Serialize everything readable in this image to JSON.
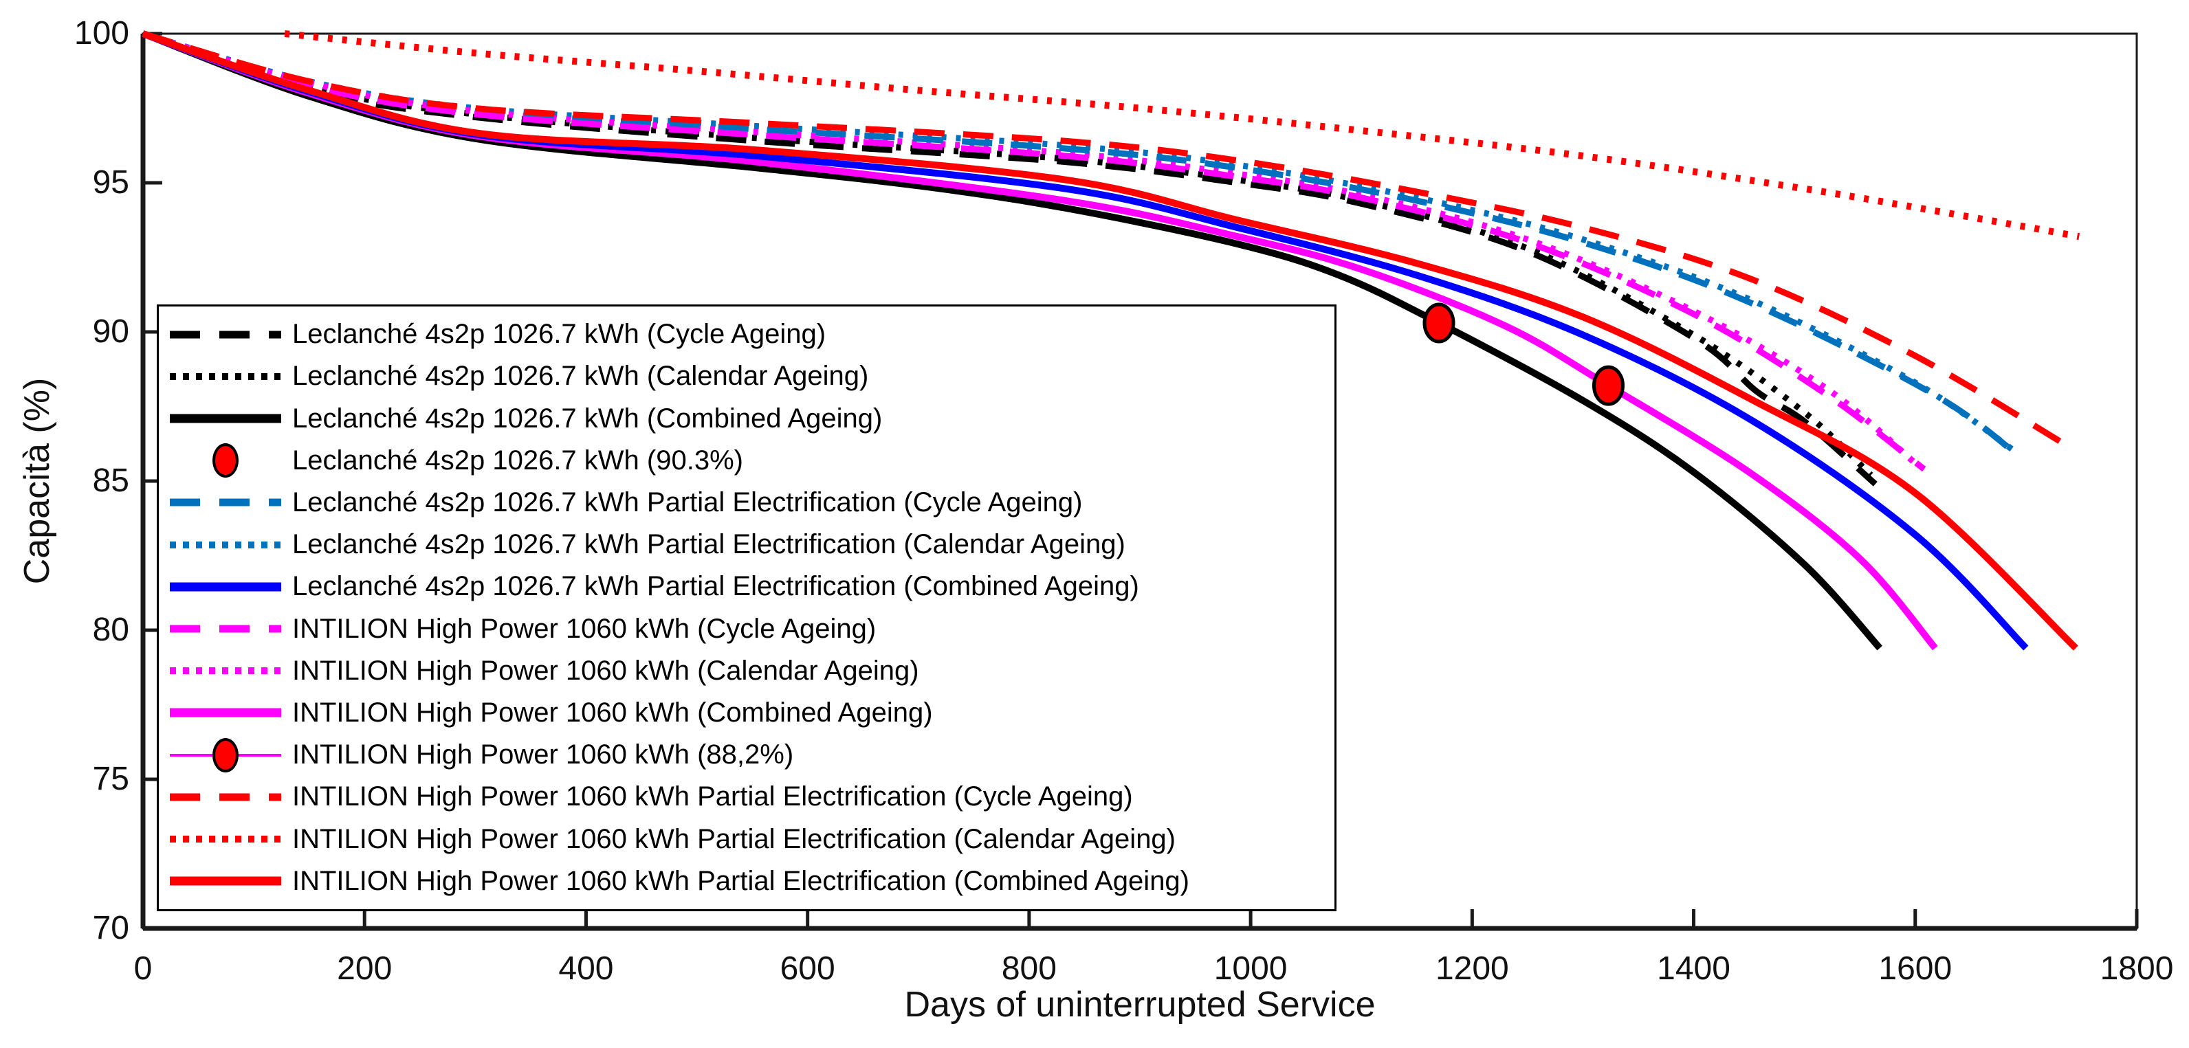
{
  "chart_data": {
    "type": "line",
    "title": "",
    "xlabel": "Days of uninterrupted Service",
    "ylabel": "Capacità (%)",
    "xlim": [
      0,
      1800
    ],
    "ylim": [
      70,
      100
    ],
    "x_ticks": [
      0,
      200,
      400,
      600,
      800,
      1000,
      1200,
      1400,
      1600,
      1800
    ],
    "y_ticks": [
      70,
      75,
      80,
      85,
      90,
      95,
      100
    ],
    "grid": false,
    "legend_position": "inside-left",
    "colors": {
      "black": "#000000",
      "leclanche_pe_dash": "#0072bd",
      "leclanche_pe_solid": "#0000ff",
      "intilion": "#ff00ff",
      "intilion_pe": "#ff0000",
      "marker_face": "#ff0000",
      "marker_edge": "#000000"
    },
    "series": [
      {
        "name": "Leclanché 4s2p 1026.7 kWh (Calendar Ageing)",
        "style": "dotted",
        "color": "#000000",
        "width": 9,
        "points": [
          [
            0,
            100
          ],
          [
            150,
            98.2
          ],
          [
            300,
            97.3
          ],
          [
            554,
            96.5
          ],
          [
            833,
            95.8
          ],
          [
            988,
            95.1
          ],
          [
            1100,
            94.4
          ],
          [
            1250,
            92.8
          ],
          [
            1400,
            89.9
          ],
          [
            1500,
            87.3
          ],
          [
            1560,
            85.2
          ]
        ]
      },
      {
        "name": "Leclanché 4s2p 1026.7 kWh Partial Electrification (Calendar Ageing)",
        "style": "dotted",
        "color": "#0072bd",
        "width": 9,
        "points": [
          [
            0,
            100
          ],
          [
            150,
            98.4
          ],
          [
            300,
            97.5
          ],
          [
            554,
            96.9
          ],
          [
            833,
            96.25
          ],
          [
            988,
            95.6
          ],
          [
            1150,
            94.5
          ],
          [
            1300,
            93.1
          ],
          [
            1450,
            91.1
          ],
          [
            1600,
            88.3
          ],
          [
            1690,
            86.0
          ]
        ]
      },
      {
        "name": "INTILION High Power 1060 kWh (Calendar Ageing)",
        "style": "dotted",
        "color": "#ff00ff",
        "width": 9,
        "points": [
          [
            0,
            100
          ],
          [
            150,
            98.35
          ],
          [
            300,
            97.4
          ],
          [
            554,
            96.7
          ],
          [
            833,
            96.0
          ],
          [
            988,
            95.3
          ],
          [
            1100,
            94.6
          ],
          [
            1250,
            93.1
          ],
          [
            1400,
            90.7
          ],
          [
            1520,
            88.1
          ],
          [
            1600,
            85.6
          ]
        ]
      },
      {
        "name": "Leclanché 4s2p 1026.7 kWh (Cycle Ageing)",
        "style": "dashed",
        "color": "#000000",
        "width": 9,
        "points": [
          [
            0,
            100
          ],
          [
            150,
            98.1
          ],
          [
            300,
            97.2
          ],
          [
            554,
            96.4
          ],
          [
            833,
            95.7
          ],
          [
            988,
            95.0
          ],
          [
            1100,
            94.3
          ],
          [
            1250,
            92.7
          ],
          [
            1400,
            89.8
          ],
          [
            1457,
            88.0
          ],
          [
            1500,
            87.0
          ],
          [
            1564,
            84.9
          ]
        ]
      },
      {
        "name": "Leclanché 4s2p 1026.7 kWh Partial Electrification (Cycle Ageing)",
        "style": "dashed",
        "color": "#0072bd",
        "width": 9,
        "points": [
          [
            0,
            100
          ],
          [
            150,
            98.3
          ],
          [
            300,
            97.4
          ],
          [
            554,
            96.8
          ],
          [
            833,
            96.15
          ],
          [
            988,
            95.5
          ],
          [
            1150,
            94.4
          ],
          [
            1300,
            93.0
          ],
          [
            1450,
            91.0
          ],
          [
            1617,
            87.9
          ],
          [
            1695,
            85.8
          ]
        ]
      },
      {
        "name": "INTILION High Power 1060 kWh (Cycle Ageing)",
        "style": "dashed",
        "color": "#ff00ff",
        "width": 9,
        "points": [
          [
            0,
            100
          ],
          [
            150,
            98.25
          ],
          [
            300,
            97.3
          ],
          [
            554,
            96.6
          ],
          [
            833,
            95.9
          ],
          [
            988,
            95.2
          ],
          [
            1100,
            94.5
          ],
          [
            1250,
            93.0
          ],
          [
            1400,
            90.6
          ],
          [
            1520,
            87.9
          ],
          [
            1608,
            85.4
          ]
        ]
      },
      {
        "name": "INTILION High Power 1060 kWh Partial Electrification (Calendar Ageing)",
        "style": "dotted",
        "color": "#ff0000",
        "width": 10,
        "points": [
          [
            128,
            100
          ],
          [
            300,
            99.35
          ],
          [
            500,
            98.75
          ],
          [
            700,
            98.1
          ],
          [
            900,
            97.5
          ],
          [
            1100,
            96.75
          ],
          [
            1300,
            95.9
          ],
          [
            1500,
            94.8
          ],
          [
            1650,
            93.85
          ],
          [
            1748,
            93.2
          ]
        ]
      },
      {
        "name": "INTILION High Power 1060 kWh Partial Electrification (Cycle Ageing)",
        "style": "dashed",
        "color": "#ff0000",
        "width": 9,
        "points": [
          [
            0,
            100
          ],
          [
            150,
            98.4
          ],
          [
            300,
            97.5
          ],
          [
            554,
            97.0
          ],
          [
            833,
            96.4
          ],
          [
            988,
            95.75
          ],
          [
            1150,
            94.7
          ],
          [
            1300,
            93.5
          ],
          [
            1450,
            91.8
          ],
          [
            1600,
            89.2
          ],
          [
            1741,
            86.1
          ]
        ]
      },
      {
        "name": "Leclanché 4s2p 1026.7 kWh (Combined Ageing)",
        "style": "solid",
        "color": "#000000",
        "width": 10,
        "points": [
          [
            0,
            100
          ],
          [
            150,
            97.9
          ],
          [
            305,
            96.45
          ],
          [
            554,
            95.5
          ],
          [
            700,
            94.9
          ],
          [
            833,
            94.15
          ],
          [
            988,
            92.95
          ],
          [
            1080,
            91.9
          ],
          [
            1170,
            90.3
          ],
          [
            1300,
            87.7
          ],
          [
            1400,
            85.3
          ],
          [
            1500,
            82.2
          ],
          [
            1568,
            79.4
          ]
        ]
      },
      {
        "name": "INTILION High Power 1060 kWh (Combined Ageing)",
        "style": "solid",
        "color": "#ff00ff",
        "width": 10,
        "points": [
          [
            0,
            100
          ],
          [
            150,
            98.0
          ],
          [
            305,
            96.55
          ],
          [
            554,
            95.7
          ],
          [
            833,
            94.4
          ],
          [
            988,
            93.2
          ],
          [
            1100,
            92.1
          ],
          [
            1230,
            90.2
          ],
          [
            1323,
            88.2
          ],
          [
            1450,
            85.3
          ],
          [
            1550,
            82.4
          ],
          [
            1618,
            79.4
          ]
        ]
      },
      {
        "name": "Leclanché 4s2p 1026.7 kWh Partial Electrification (Combined Ageing)",
        "style": "solid",
        "color": "#0000ff",
        "width": 10,
        "points": [
          [
            0,
            100
          ],
          [
            150,
            98.05
          ],
          [
            305,
            96.6
          ],
          [
            554,
            95.9
          ],
          [
            833,
            94.8
          ],
          [
            988,
            93.5
          ],
          [
            1150,
            91.9
          ],
          [
            1300,
            89.9
          ],
          [
            1454,
            87.0
          ],
          [
            1600,
            83.2
          ],
          [
            1700,
            79.4
          ]
        ]
      },
      {
        "name": "INTILION High Power 1060 kWh Partial Electrification (Combined Ageing)",
        "style": "solid",
        "color": "#ff0000",
        "width": 10,
        "points": [
          [
            0,
            100
          ],
          [
            150,
            98.1
          ],
          [
            305,
            96.65
          ],
          [
            554,
            96.1
          ],
          [
            833,
            95.1
          ],
          [
            988,
            93.75
          ],
          [
            1150,
            92.3
          ],
          [
            1300,
            90.5
          ],
          [
            1454,
            87.7
          ],
          [
            1600,
            84.6
          ],
          [
            1745,
            79.4
          ]
        ]
      }
    ],
    "markers": [
      {
        "label": "Leclanché 4s2p 1026.7 kWh (90.3%)",
        "day": 1170,
        "capacity_pct": 90.3,
        "face": "#ff0000",
        "edge": "#000000"
      },
      {
        "label": "INTILION High Power 1060 kWh (88,2%)",
        "day": 1323,
        "capacity_pct": 88.2,
        "face": "#ff0000",
        "edge": "#000000"
      }
    ],
    "legend": [
      {
        "label": "Leclanché 4s2p 1026.7 kWh (Cycle Ageing)",
        "style": "dashed",
        "color": "#000000"
      },
      {
        "label": "Leclanché 4s2p 1026.7 kWh (Calendar Ageing)",
        "style": "dotted",
        "color": "#000000"
      },
      {
        "label": "Leclanché 4s2p 1026.7 kWh (Combined Ageing)",
        "style": "solid",
        "color": "#000000"
      },
      {
        "label": "Leclanché 4s2p 1026.7 kWh (90.3%)",
        "style": "marker",
        "color": "#ff0000"
      },
      {
        "label": "Leclanché 4s2p 1026.7 kWh Partial Electrification (Cycle Ageing)",
        "style": "dashed",
        "color": "#0072bd"
      },
      {
        "label": "Leclanché 4s2p 1026.7 kWh Partial Electrification (Calendar Ageing)",
        "style": "dotted",
        "color": "#0072bd"
      },
      {
        "label": "Leclanché 4s2p 1026.7 kWh Partial Electrification (Combined Ageing)",
        "style": "solid",
        "color": "#0000ff"
      },
      {
        "label": "INTILION High Power 1060 kWh (Cycle Ageing)",
        "style": "dashed",
        "color": "#ff00ff"
      },
      {
        "label": "INTILION High Power 1060 kWh (Calendar Ageing)",
        "style": "dotted",
        "color": "#ff00ff"
      },
      {
        "label": "INTILION High Power 1060 kWh (Combined Ageing)",
        "style": "solid",
        "color": "#ff00ff"
      },
      {
        "label": "INTILION High Power 1060 kWh (88,2%)",
        "style": "marker-line",
        "color": "#ff00ff"
      },
      {
        "label": "INTILION High Power 1060 kWh Partial Electrification (Cycle Ageing)",
        "style": "dashed",
        "color": "#ff0000"
      },
      {
        "label": "INTILION High Power 1060 kWh Partial Electrification (Calendar Ageing)",
        "style": "dotted",
        "color": "#ff0000"
      },
      {
        "label": "INTILION High Power 1060 kWh Partial Electrification (Combined Ageing)",
        "style": "solid",
        "color": "#ff0000"
      }
    ]
  }
}
